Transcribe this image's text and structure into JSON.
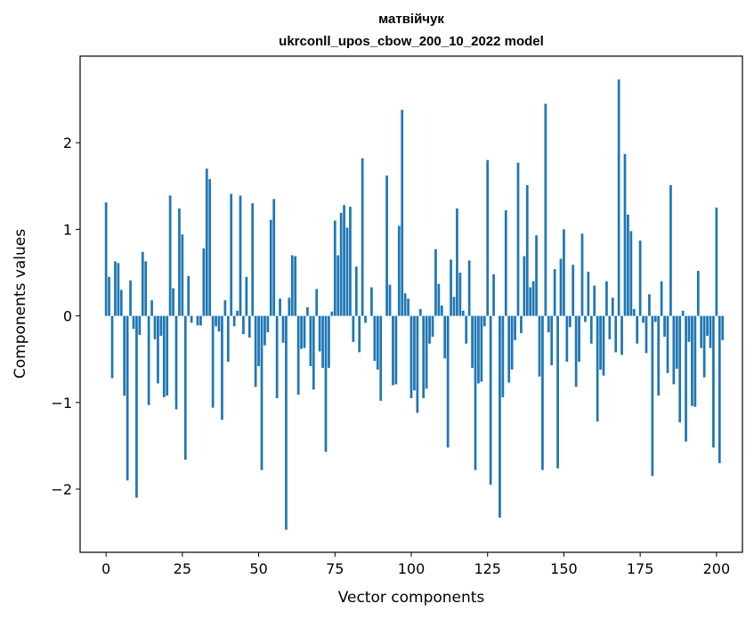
{
  "chart_data": {
    "type": "bar",
    "title": "матвійчук",
    "subtitle": "ukrconll_upos_cbow_200_10_2022 model",
    "xlabel": "Vector components",
    "ylabel": "Components values",
    "xlim": [
      -8.5,
      208.5
    ],
    "ylim": [
      -2.73,
      3.0
    ],
    "x_ticks": [
      0,
      25,
      50,
      75,
      100,
      125,
      150,
      175,
      200
    ],
    "y_ticks": [
      -2,
      -1,
      0,
      1,
      2
    ],
    "x_tick_labels": [
      "0",
      "25",
      "50",
      "75",
      "100",
      "125",
      "150",
      "175",
      "200"
    ],
    "y_tick_labels": [
      "−2",
      "−1",
      "0",
      "1",
      "2"
    ],
    "grid": false,
    "bar_color": "#1f77b4",
    "values": [
      1.31,
      0.45,
      -0.72,
      0.63,
      0.61,
      0.3,
      -0.92,
      -1.9,
      0.41,
      -0.15,
      -2.1,
      -0.22,
      0.74,
      0.63,
      -1.03,
      0.18,
      -0.27,
      -0.78,
      -0.23,
      -0.94,
      -0.92,
      1.39,
      0.32,
      -1.08,
      1.24,
      0.94,
      -1.66,
      0.46,
      -0.08,
      0.0,
      -0.11,
      -0.11,
      0.78,
      1.7,
      1.58,
      -1.06,
      -0.12,
      -0.18,
      -1.2,
      0.18,
      -0.53,
      1.41,
      -0.12,
      0.06,
      1.39,
      -0.21,
      0.45,
      -0.25,
      1.3,
      -0.82,
      -0.58,
      -1.78,
      -0.34,
      -0.19,
      1.11,
      1.35,
      -0.95,
      0.2,
      -0.31,
      -2.47,
      0.21,
      0.7,
      0.69,
      -0.91,
      -0.38,
      -0.37,
      0.1,
      -0.58,
      -0.85,
      0.31,
      -0.41,
      -0.6,
      -1.57,
      -0.6,
      0.05,
      1.1,
      0.7,
      1.19,
      1.28,
      1.02,
      1.26,
      -0.3,
      0.57,
      -0.42,
      1.82,
      -0.08,
      0.0,
      0.33,
      -0.52,
      -0.62,
      -0.98,
      0.0,
      1.62,
      0.36,
      -0.8,
      -0.79,
      1.04,
      2.38,
      0.26,
      0.2,
      -0.95,
      -0.86,
      -1.12,
      0.08,
      -0.95,
      -0.84,
      -0.32,
      -0.24,
      0.77,
      0.37,
      0.12,
      -0.49,
      -1.52,
      0.65,
      0.22,
      1.24,
      0.5,
      0.06,
      -0.32,
      0.64,
      -0.6,
      -1.78,
      -0.78,
      -0.76,
      -0.12,
      1.8,
      -1.95,
      0.48,
      0.0,
      -2.33,
      -0.94,
      1.22,
      -0.77,
      -0.62,
      -0.28,
      1.77,
      -0.2,
      0.69,
      1.51,
      0.33,
      0.4,
      0.93,
      -0.7,
      -1.78,
      2.45,
      -0.19,
      -0.57,
      0.54,
      -1.76,
      0.66,
      1.0,
      -0.53,
      -0.13,
      0.59,
      -0.82,
      -0.53,
      0.95,
      -0.07,
      0.51,
      -0.32,
      0.35,
      -1.22,
      -0.62,
      -0.69,
      0.4,
      -0.27,
      0.21,
      -0.42,
      2.73,
      -0.45,
      1.87,
      1.17,
      0.98,
      0.08,
      -0.32,
      0.87,
      -0.08,
      -0.43,
      0.25,
      -1.85,
      -0.07,
      -0.92,
      0.4,
      -0.24,
      -0.66,
      1.51,
      -0.79,
      -0.61,
      -1.23,
      0.06,
      -1.45,
      -0.3,
      -1.04,
      -1.05,
      0.52,
      -0.37,
      -0.71,
      -0.23,
      -0.37,
      -1.52,
      1.25,
      -1.7,
      -0.28
    ]
  }
}
